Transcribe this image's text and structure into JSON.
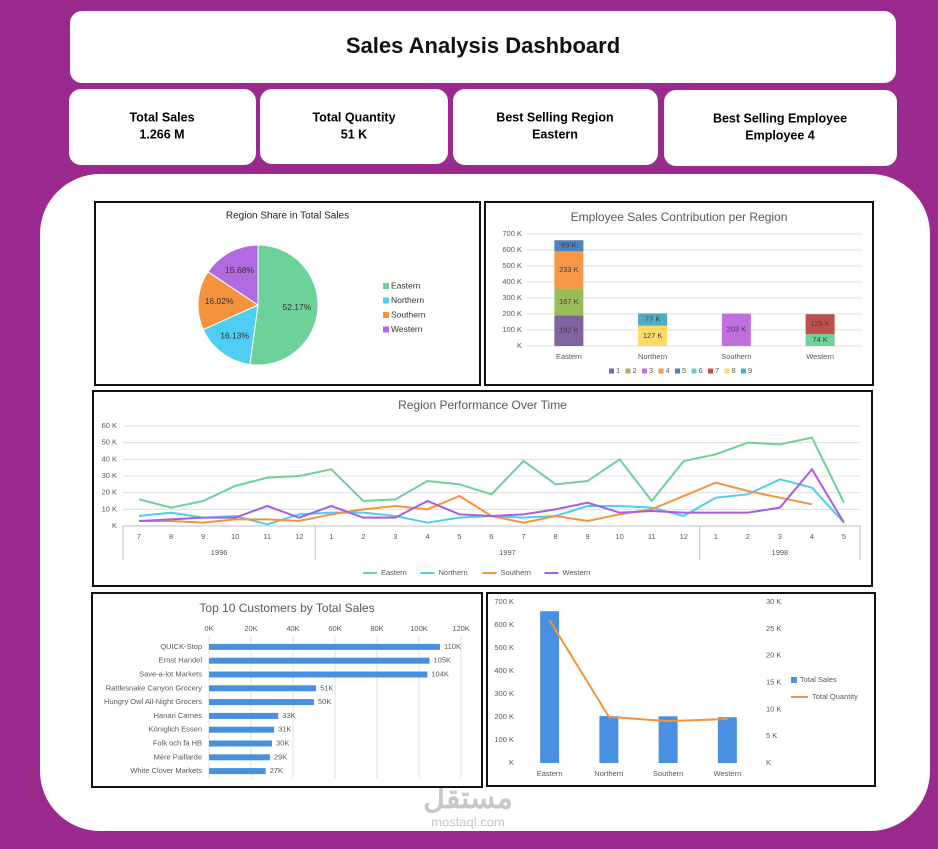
{
  "header": {
    "title": "Sales Analysis Dashboard"
  },
  "kpis": [
    {
      "label": "Total Sales",
      "value": "1.266 M"
    },
    {
      "label": "Total Quantity",
      "value": "51 K"
    },
    {
      "label": "Best Selling Region",
      "value": "Eastern"
    },
    {
      "label": "Best Selling Employee",
      "value": "Employee 4"
    }
  ],
  "chart_data": [
    {
      "type": "pie",
      "title": "Region Share in Total Sales",
      "categories": [
        "Eastern",
        "Northern",
        "Southern",
        "Western"
      ],
      "values": [
        52.17,
        16.13,
        16.02,
        15.68
      ],
      "value_labels": [
        "52.17%",
        "16.13%",
        "16.02%",
        "15.68%"
      ],
      "colors": [
        "#6dd19a",
        "#4fcdf2",
        "#f5923e",
        "#b26ae0"
      ],
      "legend": "right"
    },
    {
      "type": "stacked_bar",
      "title": "Employee Sales Contribution per Region",
      "categories": [
        "Eastern",
        "Northern",
        "Southern",
        "Western"
      ],
      "series": [
        {
          "name": "1",
          "color": "#8064a2",
          "values": [
            192,
            null,
            null,
            null
          ],
          "value_labels": [
            "192 K",
            null,
            null,
            null
          ]
        },
        {
          "name": "2",
          "color": "#9bbb59",
          "values": [
            167,
            null,
            null,
            null
          ],
          "value_labels": [
            "167 K",
            null,
            null,
            null
          ]
        },
        {
          "name": "3",
          "color": "#c06ee2",
          "values": [
            null,
            null,
            203,
            null
          ],
          "value_labels": [
            null,
            null,
            "203 K",
            null
          ]
        },
        {
          "name": "4",
          "color": "#f79646",
          "values": [
            233,
            null,
            null,
            null
          ],
          "value_labels": [
            "233 K",
            null,
            null,
            null
          ]
        },
        {
          "name": "5",
          "color": "#4f81bd",
          "values": [
            69,
            null,
            null,
            null
          ],
          "value_labels": [
            "69 K",
            null,
            null,
            null
          ]
        },
        {
          "name": "6",
          "color": "#6dd19a",
          "values": [
            null,
            null,
            null,
            74
          ],
          "value_labels": [
            null,
            null,
            null,
            "74 K"
          ]
        },
        {
          "name": "7",
          "color": "#c0504d",
          "values": [
            null,
            null,
            null,
            125
          ],
          "value_labels": [
            null,
            null,
            null,
            "125 K"
          ]
        },
        {
          "name": "8",
          "color": "#ffd966",
          "values": [
            null,
            127,
            null,
            null
          ],
          "value_labels": [
            null,
            "127 K",
            null,
            null
          ]
        },
        {
          "name": "9",
          "color": "#4bacc6",
          "values": [
            null,
            77,
            null,
            null
          ],
          "value_labels": [
            null,
            "77 K",
            null,
            null
          ]
        }
      ],
      "ylim": [
        0,
        700
      ],
      "yticks": [
        {
          "value": 0,
          "label": "K"
        },
        {
          "value": 100,
          "label": "100 K"
        },
        {
          "value": 200,
          "label": "200 K"
        },
        {
          "value": 300,
          "label": "300 K"
        },
        {
          "value": 400,
          "label": "400 K"
        },
        {
          "value": 500,
          "label": "500 K"
        },
        {
          "value": 600,
          "label": "600 K"
        },
        {
          "value": 700,
          "label": "700 K"
        }
      ],
      "grid": true,
      "legend": "bottom"
    },
    {
      "type": "line",
      "title": "Region Performance Over Time",
      "groups": [
        {
          "name": "1996",
          "categories": [
            "7",
            "8",
            "9",
            "10",
            "11",
            "12"
          ]
        },
        {
          "name": "1997",
          "categories": [
            "1",
            "2",
            "3",
            "4",
            "5",
            "6",
            "7",
            "8",
            "9",
            "10",
            "11",
            "12"
          ]
        },
        {
          "name": "1998",
          "categories": [
            "1",
            "2",
            "3",
            "4",
            "5"
          ]
        }
      ],
      "series": [
        {
          "name": "Eastern",
          "color": "#6dd19a",
          "values": [
            16,
            11,
            15,
            24,
            29,
            30,
            34,
            15,
            16,
            27,
            25,
            19,
            39,
            25,
            27,
            40,
            15,
            39,
            43,
            50,
            49,
            53,
            14
          ]
        },
        {
          "name": "Northern",
          "color": "#4fcdf2",
          "values": [
            6,
            8,
            5,
            6,
            1,
            7,
            8,
            8,
            6,
            2,
            5,
            6,
            5,
            6,
            12,
            12,
            11,
            6,
            17,
            19,
            28,
            23,
            2
          ]
        },
        {
          "name": "Southern",
          "color": "#f5923e",
          "values": [
            3,
            3,
            2,
            4,
            4,
            3,
            7,
            10,
            12,
            10,
            18,
            6,
            2,
            6,
            3,
            7,
            10,
            18,
            26,
            21,
            17,
            13,
            null
          ]
        },
        {
          "name": "Western",
          "color": "#a75ee0",
          "values": [
            3,
            4,
            5,
            5,
            12,
            5,
            12,
            5,
            5,
            15,
            7,
            6,
            7,
            10,
            14,
            8,
            9,
            8,
            8,
            8,
            11,
            34,
            2
          ]
        }
      ],
      "ylim": [
        0,
        60
      ],
      "yticks": [
        {
          "value": 0,
          "label": "K"
        },
        {
          "value": 10,
          "label": "10 K"
        },
        {
          "value": 20,
          "label": "20 K"
        },
        {
          "value": 30,
          "label": "30 K"
        },
        {
          "value": 40,
          "label": "40 K"
        },
        {
          "value": 50,
          "label": "50 K"
        },
        {
          "value": 60,
          "label": "60 K"
        }
      ],
      "grid": true,
      "legend": "bottom"
    },
    {
      "type": "hbar",
      "title": "Top 10 Customers by Total Sales",
      "categories": [
        "QUICK-Stop",
        "Ernst Handel",
        "Save-a-lot Markets",
        "Rattlesnake Canyon Grocery",
        "Hungry Owl All-Night Grocers",
        "Hanari Carnes",
        "Königlich Essen",
        "Folk och fä HB",
        "Mère Paillarde",
        "White Clover Markets"
      ],
      "values": [
        110,
        105,
        104,
        51,
        50,
        33,
        31,
        30,
        29,
        27
      ],
      "value_labels": [
        "110K",
        "105K",
        "104K",
        "51K",
        "50K",
        "33K",
        "31K",
        "30K",
        "29K",
        "27K"
      ],
      "color": "#4a90e2",
      "xlim": [
        0,
        120
      ],
      "xticks": [
        {
          "value": 0,
          "label": "0K"
        },
        {
          "value": 20,
          "label": "20K"
        },
        {
          "value": 40,
          "label": "40K"
        },
        {
          "value": 60,
          "label": "60K"
        },
        {
          "value": 80,
          "label": "80K"
        },
        {
          "value": 100,
          "label": "100K"
        },
        {
          "value": 120,
          "label": "120K"
        }
      ],
      "grid": true
    },
    {
      "type": "combo",
      "categories": [
        "Eastern",
        "Northern",
        "Southern",
        "Western"
      ],
      "series": [
        {
          "name": "Total Sales",
          "type": "bar",
          "color": "#4a90e2",
          "values": [
            660,
            204,
            203,
            199
          ]
        },
        {
          "name": "Total Quantity",
          "type": "line",
          "axis": "y2",
          "color": "#f5923e",
          "values": [
            26.6,
            8.6,
            7.8,
            8.2
          ]
        }
      ],
      "ylim": [
        0,
        700
      ],
      "yticks": [
        {
          "value": 0,
          "label": "K"
        },
        {
          "value": 100,
          "label": "100 K"
        },
        {
          "value": 200,
          "label": "200 K"
        },
        {
          "value": 300,
          "label": "300 K"
        },
        {
          "value": 400,
          "label": "400 K"
        },
        {
          "value": 500,
          "label": "500 K"
        },
        {
          "value": 600,
          "label": "600 K"
        },
        {
          "value": 700,
          "label": "700 K"
        }
      ],
      "y2lim": [
        0,
        30
      ],
      "y2ticks": [
        {
          "value": 0,
          "label": "K"
        },
        {
          "value": 5,
          "label": "5 K"
        },
        {
          "value": 10,
          "label": "10 K"
        },
        {
          "value": 15,
          "label": "15 K"
        },
        {
          "value": 20,
          "label": "20 K"
        },
        {
          "value": 25,
          "label": "25 K"
        },
        {
          "value": 30,
          "label": "30 K"
        }
      ],
      "legend": "right"
    }
  ],
  "watermark": {
    "arabic": "مستقل",
    "latin": "mostaql.com"
  }
}
